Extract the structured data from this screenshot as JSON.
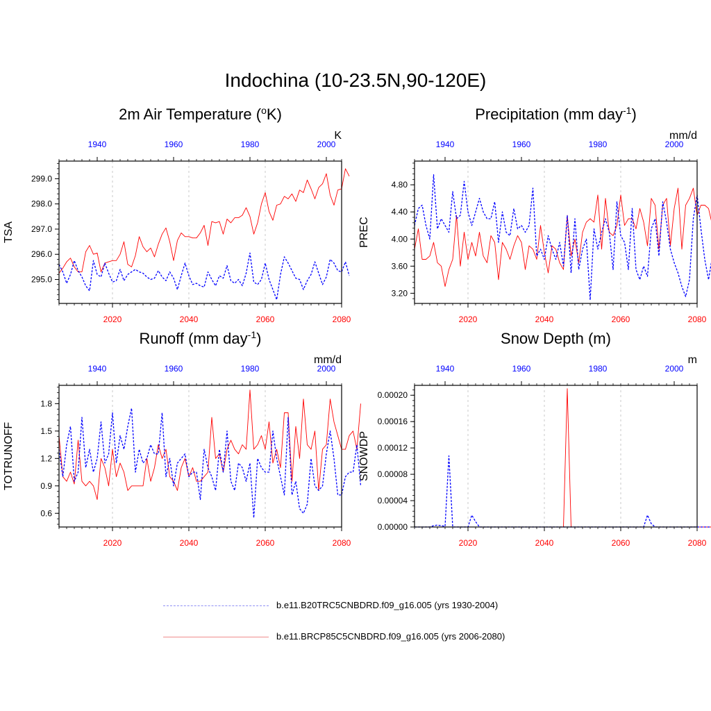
{
  "title": "Indochina (10-23.5N,90-120E)",
  "colors": {
    "future": "#ff0000",
    "historical": "#0000ff"
  },
  "legend": {
    "historical_label": "b.e11.B20TRC5CNBDRD.f09_g16.005 (yrs 1930-2004)",
    "future_label": "b.e11.BRCP85C5CNBDRD.f09_g16.005 (yrs 2006-2080)"
  },
  "chart_data": [
    {
      "type": "line",
      "title_main": "2m Air Temperature (",
      "title_sup1": "o",
      "title_tail": "K)",
      "title_sup2": "",
      "title_end": "",
      "units": "K",
      "ylabel": "TSA",
      "ylim": [
        294.05,
        299.7
      ],
      "yticks": [
        295,
        296,
        297,
        298,
        299
      ],
      "ytick_labels": [
        "295.0",
        "296.0",
        "297.0",
        "298.0",
        "299.0"
      ],
      "x_bottom": {
        "range": [
          2006,
          2080
        ],
        "ticks": [
          2020,
          2040,
          2060,
          2080
        ],
        "labels": [
          "2020",
          "2040",
          "2060",
          "2080"
        ]
      },
      "x_top": {
        "range": [
          1930,
          2004
        ],
        "ticks": [
          1940,
          1960,
          1980,
          2000
        ],
        "labels": [
          "1940",
          "1960",
          "1980",
          "2000"
        ]
      },
      "series": [
        {
          "name": "b.e11.BRCP85C5CNBDRD.f09_g16.005 (yrs 2006-2080)",
          "style": "solid",
          "x_start": 2006,
          "values": [
            295.25,
            295.45,
            295.7,
            295.85,
            295.5,
            295.3,
            295.3,
            296.1,
            296.35,
            296.0,
            296.05,
            295.3,
            295.65,
            295.7,
            295.75,
            295.75,
            296.0,
            296.5,
            295.6,
            295.5,
            295.95,
            296.7,
            296.3,
            296.1,
            296.25,
            295.9,
            296.4,
            296.8,
            297.05,
            296.5,
            295.75,
            296.55,
            296.85,
            296.7,
            296.7,
            296.65,
            296.65,
            296.85,
            297.15,
            296.35,
            297.3,
            297.25,
            297.3,
            296.8,
            297.4,
            297.25,
            297.45,
            297.45,
            297.55,
            297.85,
            297.5,
            296.8,
            297.25,
            298.0,
            298.45,
            297.7,
            297.35,
            297.95,
            298.0,
            298.3,
            298.2,
            298.4,
            298.1,
            298.55,
            298.45,
            298.95,
            298.6,
            298.2,
            298.65,
            298.8,
            299.2,
            298.35,
            297.95,
            298.55,
            298.6,
            299.4,
            299.1
          ]
        },
        {
          "name": "b.e11.B20TRC5CNBDRD.f09_g16.005 (yrs 1930-2004)",
          "style": "dash",
          "x_start": 2006,
          "values": [
            295.6,
            295.3,
            294.85,
            295.2,
            295.75,
            295.35,
            295.1,
            294.75,
            294.55,
            295.75,
            295.2,
            295.1,
            295.65,
            295.25,
            294.9,
            294.95,
            295.4,
            294.95,
            295.2,
            295.3,
            295.4,
            295.3,
            295.25,
            295.1,
            295.0,
            295.05,
            295.35,
            295.1,
            294.95,
            295.3,
            295.05,
            294.6,
            295.15,
            295.65,
            295.15,
            294.8,
            294.85,
            294.75,
            294.7,
            295.3,
            295.0,
            294.75,
            295.15,
            295.05,
            295.55,
            294.95,
            294.85,
            295.0,
            294.75,
            295.25,
            296.05,
            294.9,
            294.8,
            295.0,
            295.65,
            295.0,
            294.6,
            294.2,
            295.2,
            295.9,
            295.65,
            295.35,
            295.05,
            295.0,
            294.6,
            294.95,
            295.2,
            295.7,
            295.25,
            294.8,
            295.1,
            295.8,
            295.65,
            295.35,
            295.3,
            295.7,
            295.15
          ]
        }
      ]
    },
    {
      "type": "line",
      "title_main": "Precipitation (mm day",
      "title_sup1": "-1",
      "title_tail": ")",
      "title_sup2": "",
      "title_end": "",
      "units": "mm/d",
      "ylabel": "PREC",
      "ylim": [
        3.05,
        5.15
      ],
      "yticks": [
        3.2,
        3.6,
        4.0,
        4.4,
        4.8
      ],
      "ytick_labels": [
        "3.20",
        "3.60",
        "4.00",
        "4.40",
        "4.80"
      ],
      "x_bottom": {
        "range": [
          2006,
          2080
        ],
        "ticks": [
          2020,
          2040,
          2060,
          2080
        ],
        "labels": [
          "2020",
          "2040",
          "2060",
          "2080"
        ]
      },
      "x_top": {
        "range": [
          1932,
          2006
        ],
        "ticks": [
          1940,
          1960,
          1980,
          2000
        ],
        "labels": [
          "1940",
          "1960",
          "1980",
          "2000"
        ]
      },
      "series": [
        {
          "name": "b.e11.BRCP85C5CNBDRD.f09_g16.005 (yrs 2006-2080)",
          "style": "solid",
          "x_start": 2006,
          "values": [
            3.85,
            4.15,
            3.7,
            3.7,
            3.75,
            3.95,
            3.65,
            3.6,
            3.3,
            3.55,
            3.7,
            4.35,
            3.6,
            4.1,
            3.7,
            3.95,
            3.75,
            4.1,
            3.75,
            3.65,
            4.05,
            3.95,
            3.4,
            3.95,
            3.85,
            3.7,
            3.9,
            4.05,
            3.95,
            3.55,
            3.9,
            3.85,
            3.7,
            4.2,
            3.8,
            3.5,
            3.9,
            3.85,
            3.65,
            3.55,
            4.35,
            3.75,
            4.0,
            3.65,
            4.1,
            4.25,
            4.3,
            4.25,
            4.65,
            3.85,
            4.6,
            4.1,
            4.05,
            4.2,
            4.65,
            4.2,
            4.3,
            4.3,
            4.15,
            4.45,
            4.25,
            3.9,
            4.6,
            4.5,
            3.85,
            4.5,
            4.6,
            3.9,
            4.45,
            4.75,
            3.85,
            4.5,
            4.6,
            4.75,
            4.35,
            4.5,
            4.5,
            4.45,
            4.2,
            4.1,
            4.9
          ]
        },
        {
          "name": "b.e11.B20TRC5CNBDRD.f09_g16.005 (yrs 1930-2004)",
          "style": "dash",
          "x_start": 2006,
          "values": [
            4.2,
            4.45,
            4.5,
            4.2,
            4.0,
            4.95,
            4.15,
            4.3,
            4.2,
            4.1,
            4.7,
            4.3,
            4.35,
            4.85,
            4.4,
            4.2,
            4.4,
            4.6,
            4.4,
            4.3,
            4.3,
            4.55,
            3.95,
            4.4,
            4.1,
            4.05,
            4.45,
            4.15,
            4.2,
            4.1,
            4.2,
            4.75,
            3.75,
            3.85,
            3.7,
            4.05,
            3.85,
            3.7,
            3.95,
            3.6,
            4.35,
            3.5,
            4.3,
            3.55,
            3.85,
            4.0,
            3.1,
            4.15,
            3.85,
            4.1,
            4.3,
            4.1,
            3.55,
            4.55,
            4.05,
            3.95,
            3.55,
            4.45,
            3.55,
            3.4,
            3.6,
            3.45,
            4.15,
            4.3,
            3.75,
            4.55,
            4.25,
            3.85,
            3.65,
            3.5,
            3.3,
            3.15,
            3.4,
            4.3,
            4.65,
            4.15,
            3.7,
            3.4,
            3.75,
            3.9,
            3.75
          ]
        }
      ]
    },
    {
      "type": "line",
      "title_main": "Runoff (mm day",
      "title_sup1": "-1",
      "title_tail": ")",
      "title_sup2": "",
      "title_end": "",
      "units": "mm/d",
      "ylabel": "TOTRUNOFF",
      "ylim": [
        0.45,
        2.0
      ],
      "yticks": [
        0.6,
        0.9,
        1.2,
        1.5,
        1.8
      ],
      "ytick_labels": [
        "0.6",
        "0.9",
        "1.2",
        "1.5",
        "1.8"
      ],
      "x_bottom": {
        "range": [
          2006,
          2080
        ],
        "ticks": [
          2020,
          2040,
          2060,
          2080
        ],
        "labels": [
          "2020",
          "2040",
          "2060",
          "2080"
        ]
      },
      "x_top": {
        "range": [
          1930,
          2004
        ],
        "ticks": [
          1940,
          1960,
          1980,
          2000
        ],
        "labels": [
          "1940",
          "1960",
          "1980",
          "2000"
        ]
      },
      "series": [
        {
          "name": "b.e11.BRCP85C5CNBDRD.f09_g16.005 (yrs 2006-2080)",
          "style": "solid",
          "x_start": 2006,
          "values": [
            1.45,
            1.0,
            0.95,
            1.05,
            0.92,
            1.4,
            0.95,
            0.9,
            0.95,
            0.9,
            0.75,
            1.2,
            1.1,
            0.9,
            1.3,
            1.0,
            1.15,
            1.05,
            0.85,
            0.9,
            0.9,
            0.9,
            0.9,
            1.2,
            0.95,
            1.1,
            1.35,
            1.2,
            1.3,
            1.0,
            0.95,
            0.85,
            1.1,
            1.2,
            1.0,
            1.1,
            0.95,
            0.95,
            1.0,
            1.05,
            1.65,
            1.2,
            1.25,
            1.05,
            1.3,
            1.4,
            1.3,
            1.25,
            1.35,
            1.3,
            1.95,
            1.3,
            1.35,
            1.45,
            1.3,
            1.6,
            1.15,
            1.3,
            1.1,
            1.7,
            1.7,
            0.95,
            1.55,
            1.2,
            1.85,
            1.35,
            1.3,
            1.5,
            0.85,
            1.3,
            1.35,
            1.85,
            1.6,
            1.45,
            1.3,
            1.3,
            1.45,
            1.5,
            1.3,
            1.8
          ]
        },
        {
          "name": "b.e11.B20TRC5CNBDRD.f09_g16.005 (yrs 1930-2004)",
          "style": "dash",
          "x_start": 2006,
          "values": [
            1.3,
            1.0,
            1.35,
            1.55,
            0.95,
            1.05,
            1.65,
            1.1,
            1.3,
            1.05,
            1.2,
            1.6,
            1.15,
            1.25,
            1.7,
            1.15,
            1.45,
            1.3,
            1.55,
            1.75,
            1.05,
            1.3,
            1.15,
            1.2,
            1.35,
            1.25,
            1.25,
            1.7,
            1.0,
            1.2,
            0.9,
            1.15,
            1.2,
            1.25,
            1.0,
            1.05,
            1.05,
            0.75,
            1.3,
            1.1,
            1.0,
            0.85,
            1.3,
            1.05,
            1.5,
            0.95,
            0.85,
            1.15,
            1.1,
            0.95,
            1.15,
            0.55,
            1.2,
            1.1,
            1.05,
            1.05,
            1.5,
            1.2,
            1.0,
            0.8,
            1.65,
            0.8,
            0.95,
            0.65,
            0.6,
            0.7,
            1.2,
            0.9,
            0.85,
            0.9,
            1.25,
            1.5,
            1.2,
            0.8,
            0.8,
            1.0,
            1.05,
            1.05,
            1.35,
            0.9
          ]
        }
      ]
    },
    {
      "type": "line",
      "title_main": "Snow Depth (m)",
      "title_sup1": "",
      "title_tail": "",
      "title_sup2": "",
      "title_end": "",
      "units": "m",
      "ylabel": "SNOWDP",
      "ylim": [
        0.0,
        0.000215
      ],
      "yticks": [
        0.0,
        4e-05,
        8e-05,
        0.00012,
        0.00016,
        0.0002
      ],
      "ytick_labels": [
        "0.00000",
        "0.00004",
        "0.00008",
        "0.00012",
        "0.00016",
        "0.00020"
      ],
      "x_bottom": {
        "range": [
          2006,
          2080
        ],
        "ticks": [
          2020,
          2040,
          2060,
          2080
        ],
        "labels": [
          "2020",
          "2040",
          "2060",
          "2080"
        ]
      },
      "x_top": {
        "range": [
          1932,
          2006
        ],
        "ticks": [
          1940,
          1960,
          1980,
          2000
        ],
        "labels": [
          "1940",
          "1960",
          "1980",
          "2000"
        ]
      },
      "series": [
        {
          "name": "b.e11.BRCP85C5CNBDRD.f09_g16.005 (yrs 2006-2080)",
          "style": "solid",
          "x_start": 2006,
          "values": [
            0,
            0,
            0,
            0,
            0,
            0,
            0,
            0,
            0,
            0,
            0,
            0,
            0,
            0,
            0,
            0,
            0,
            0,
            0,
            0,
            0,
            0,
            0,
            0,
            0,
            0,
            0,
            0,
            0,
            0,
            0,
            0,
            0,
            0,
            0,
            0,
            0,
            0,
            0,
            0,
            0.00021,
            0,
            0,
            0,
            0,
            0,
            0,
            0,
            0,
            0,
            0,
            0,
            0,
            0,
            0,
            0,
            0,
            0,
            0,
            0,
            0,
            0,
            0,
            0,
            0,
            0,
            0,
            0,
            0,
            0,
            0,
            0,
            0,
            0,
            0,
            0,
            0,
            0,
            0,
            0
          ]
        },
        {
          "name": "b.e11.B20TRC5CNBDRD.f09_g16.005 (yrs 1930-2004)",
          "style": "dash",
          "x_start": 2006,
          "values": [
            0,
            0,
            0,
            0,
            0,
            2e-06,
            3e-06,
            2e-06,
            1e-06,
            0.000108,
            0,
            0,
            0,
            0,
            0,
            1.8e-05,
            8e-06,
            0,
            0,
            0,
            0,
            0,
            0,
            0,
            0,
            0,
            0,
            0,
            0,
            0,
            0,
            0,
            0,
            0,
            0,
            0,
            0,
            0,
            0,
            0,
            0,
            0,
            0,
            0,
            0,
            0,
            0,
            0,
            0,
            0,
            0,
            0,
            0,
            0,
            0,
            0,
            0,
            0,
            0,
            0,
            0,
            1.8e-05,
            5e-06,
            0,
            0,
            0,
            0,
            0,
            0,
            0,
            0,
            0,
            0,
            0,
            0,
            0,
            0,
            0,
            0,
            0
          ]
        }
      ]
    }
  ]
}
